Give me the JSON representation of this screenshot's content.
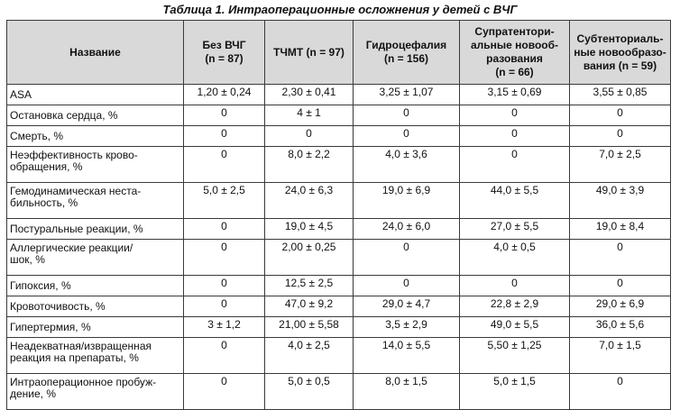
{
  "caption": "Таблица 1. Интраоперационные осложнения у детей с ВЧГ",
  "headers": [
    "Название",
    "Без ВЧГ\n(n = 87)",
    "ТЧМТ (n = 97)",
    "Гидроцефалия\n(n = 156)",
    "Супратентори-\nальные новооб-\nразования\n(n = 66)",
    "Субтенториаль-\nные новообразо-\nвания (n = 59)"
  ],
  "rows": [
    {
      "name": "ASA",
      "v": [
        "1,20 ± 0,24",
        "2,30 ± 0,41",
        "3,25 ± 1,07",
        "3,15 ± 0,69",
        "3,55 ± 0,85"
      ]
    },
    {
      "name": "Остановка сердца, %",
      "v": [
        "0",
        "4 ± 1",
        "0",
        "0",
        "0"
      ]
    },
    {
      "name": "Смерть, %",
      "v": [
        "0",
        "0",
        "0",
        "0",
        "0"
      ]
    },
    {
      "name": "Неэффективность крово-\nобращения, %",
      "v": [
        "0",
        "8,0 ± 2,2",
        "4,0 ± 3,6",
        "0",
        "7,0 ± 2,5"
      ]
    },
    {
      "name": "Гемодинамическая неста-\nбильность, %",
      "v": [
        "5,0 ± 2,5",
        "24,0 ± 6,3",
        "19,0 ± 6,9",
        "44,0 ± 5,5",
        "49,0 ± 3,9"
      ]
    },
    {
      "name": "Постуральные реакции, %",
      "v": [
        "0",
        "19,0 ± 4,5",
        "24,0 ± 6,0",
        "27,0 ± 5,5",
        "19,0 ± 8,4"
      ]
    },
    {
      "name": "Аллергические реакции/\nшок, %",
      "v": [
        "0",
        "2,00 ± 0,25",
        "0",
        "4,0 ± 0,5",
        "0"
      ]
    },
    {
      "name": "Гипоксия, %",
      "v": [
        "0",
        "12,5 ± 2,5",
        "0",
        "0",
        "0"
      ]
    },
    {
      "name": "Кровоточивость, %",
      "v": [
        "0",
        "47,0 ± 9,2",
        "29,0 ± 4,7",
        "22,8 ± 2,9",
        "29,0 ± 6,9"
      ]
    },
    {
      "name": "Гипертермия, %",
      "v": [
        "3 ± 1,2",
        "21,00 ± 5,58",
        "3,5 ± 2,9",
        "49,0 ± 5,5",
        "36,0 ± 5,6"
      ]
    },
    {
      "name": "Неадекватная/извращенная\nреакция на препараты, %",
      "v": [
        "0",
        "4,0 ± 2,5",
        "14,0 ± 5,5",
        "5,50 ± 1,25",
        "7,0 ± 1,5"
      ]
    },
    {
      "name": "Интраоперационное пробуж-\nдение, %",
      "v": [
        "0",
        "5,0 ± 0,5",
        "8,0 ± 1,5",
        "5,0 ± 1,5",
        "0"
      ]
    }
  ]
}
